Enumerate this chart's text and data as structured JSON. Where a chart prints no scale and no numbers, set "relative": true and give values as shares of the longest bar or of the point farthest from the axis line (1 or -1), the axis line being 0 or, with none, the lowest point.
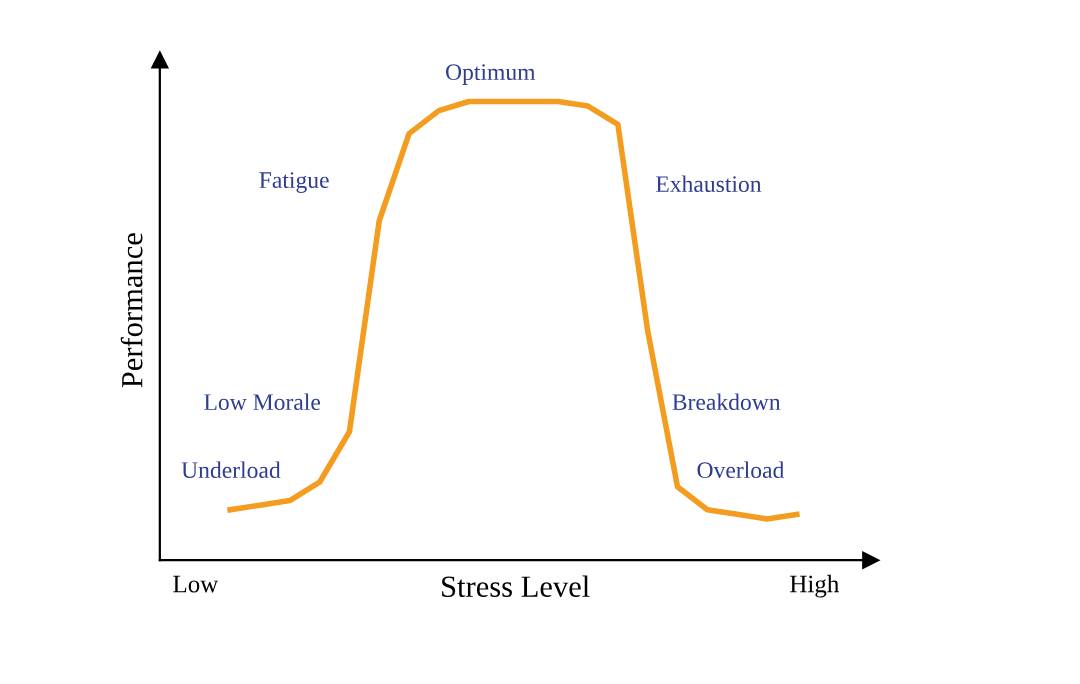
{
  "chart_data": {
    "type": "line",
    "relative": true,
    "xlabel": "Stress Level",
    "ylabel": "Performance",
    "categories": [
      null,
      null,
      null,
      null,
      null,
      null,
      null,
      null,
      null,
      null,
      null,
      null,
      null,
      null,
      null,
      null,
      null,
      null,
      null,
      null
    ],
    "series": [
      {
        "color": "#f39c1f",
        "values": [
          0.11,
          0.12,
          0.13,
          0.17,
          0.28,
          0.74,
          0.93,
          0.98,
          1.0,
          1.0,
          1.0,
          1.0,
          0.99,
          0.95,
          0.5,
          0.16,
          0.11,
          0.1,
          0.09,
          0.1
        ]
      }
    ],
    "annotations": [
      "Underload",
      "Low Morale",
      "Fatigue",
      "Optimum",
      "Exhaustion",
      "Breakdown",
      "Overload",
      "Low",
      "High"
    ],
    "grid": false,
    "marker": "none",
    "line_style": "solid"
  }
}
